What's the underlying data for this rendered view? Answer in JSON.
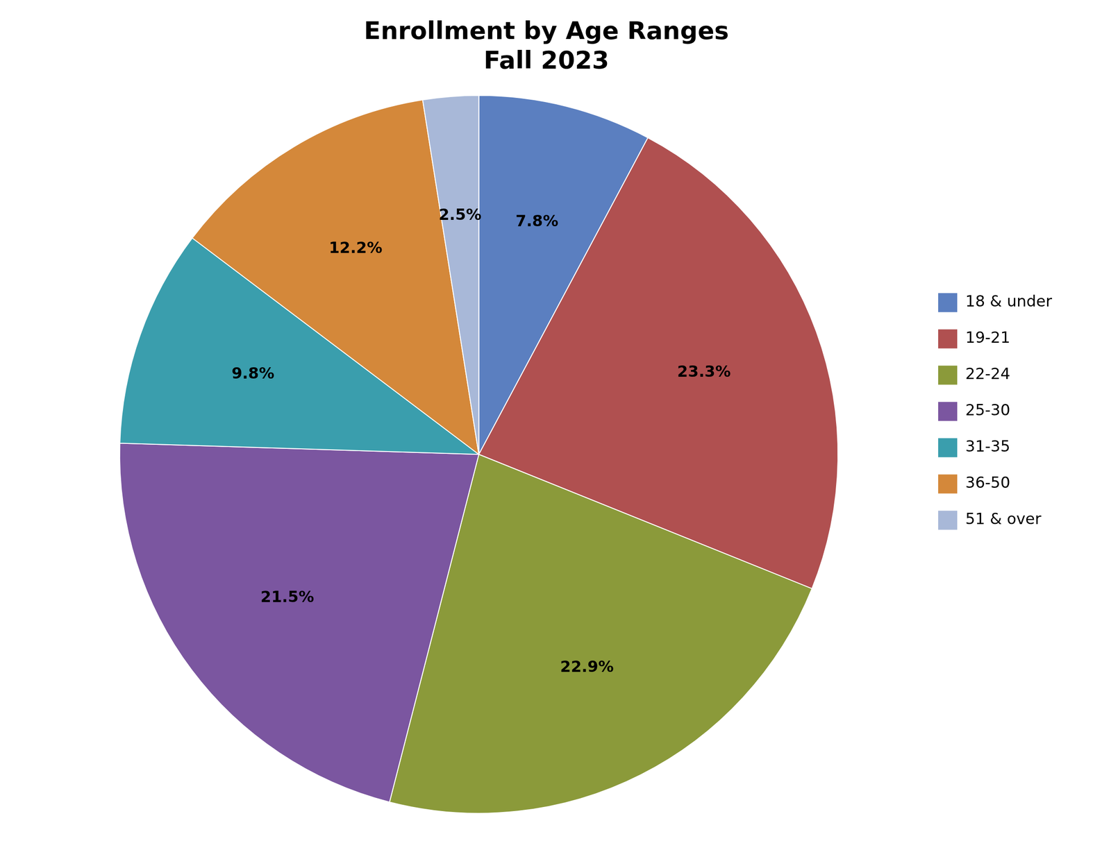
{
  "chart_data": {
    "type": "pie",
    "title": "Enrollment by Age Ranges\nFall 2023",
    "categories": [
      "18 & under",
      "19-21",
      "22-24",
      "25-30",
      "31-35",
      "36-50",
      "51 & over"
    ],
    "values": [
      7.8,
      23.3,
      22.9,
      21.5,
      9.8,
      12.2,
      2.5
    ],
    "value_labels": [
      "7.8%",
      "23.3%",
      "22.9%",
      "21.5%",
      "9.8%",
      "12.2%",
      "2.5%"
    ],
    "colors": [
      "#5B7FC0",
      "#B05050",
      "#8B9A3A",
      "#7B56A0",
      "#3A9EAD",
      "#D4883A",
      "#A8B8D8"
    ],
    "data_labels": true,
    "legend": "right"
  }
}
